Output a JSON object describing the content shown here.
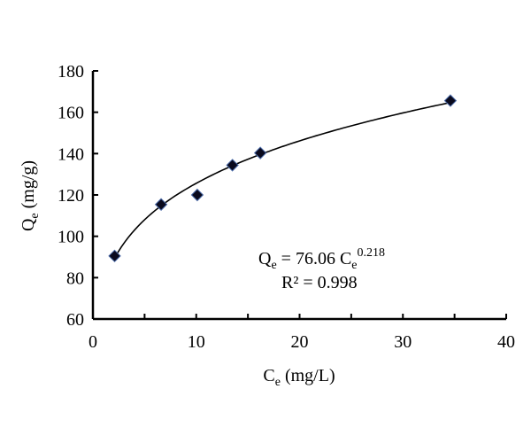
{
  "chart_data": {
    "type": "scatter",
    "title": "",
    "xlabel": {
      "main": "C",
      "sub": "e",
      "unit": " (mg/L)"
    },
    "ylabel": {
      "main": "Q",
      "sub": "e",
      "unit": " (mg/g)"
    },
    "xlim": [
      0,
      40
    ],
    "ylim": [
      60,
      180
    ],
    "xticks": [
      0,
      10,
      20,
      30,
      40
    ],
    "yticks": [
      60,
      80,
      100,
      120,
      140,
      160,
      180
    ],
    "grid": false,
    "marker": "diamond",
    "marker_color": "#0a0a1e",
    "points": [
      {
        "x": 2.1,
        "y": 90.5
      },
      {
        "x": 6.6,
        "y": 115.4
      },
      {
        "x": 10.1,
        "y": 120.0
      },
      {
        "x": 13.5,
        "y": 134.4
      },
      {
        "x": 16.2,
        "y": 140.3
      },
      {
        "x": 34.6,
        "y": 165.6
      }
    ],
    "fit": {
      "type": "power",
      "a": 76.06,
      "b": 0.218,
      "x_range": [
        2.1,
        34.6
      ]
    },
    "annotation": {
      "equation": {
        "lhs": "Q",
        "lhs_sub": "e",
        "mid": " = 76.06 C",
        "mid_sub": "e",
        "exp": "0.218"
      },
      "r2": "R² = 0.998"
    }
  }
}
